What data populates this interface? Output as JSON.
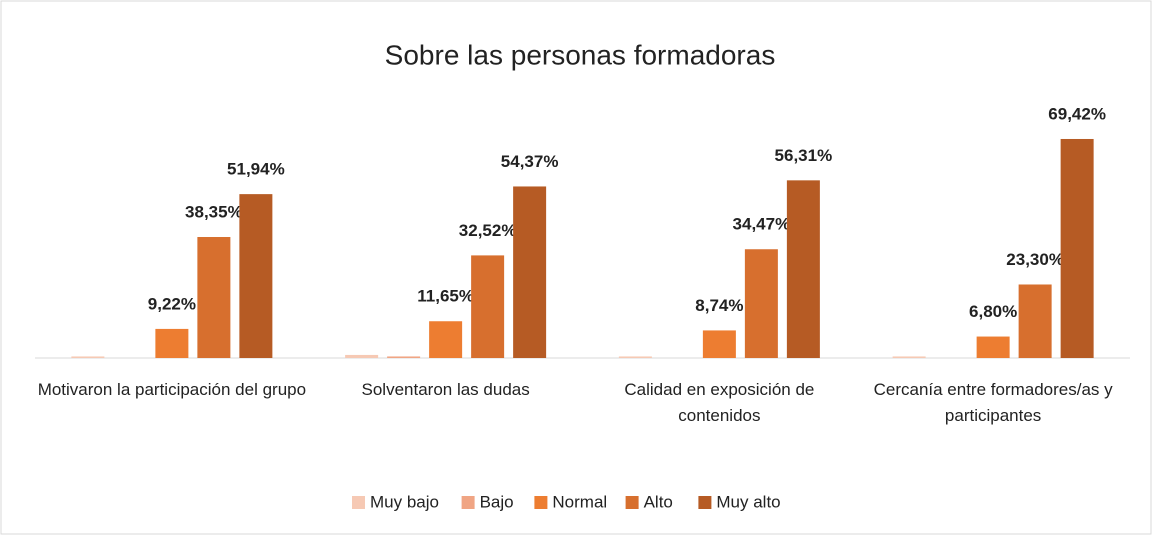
{
  "chart_data": {
    "type": "bar",
    "title": "Sobre las personas formadoras",
    "categories": [
      "Motivaron la participación del grupo",
      "Solventaron las dudas",
      "Calidad en exposición de contenidos",
      "Cercanía entre formadores/as y participantes"
    ],
    "series": [
      {
        "name": "Muy bajo",
        "color": "#f6c9b4",
        "values": [
          0.49,
          0.97,
          0.49,
          0.49
        ],
        "value_labels": [
          null,
          null,
          null,
          null
        ]
      },
      {
        "name": "Bajo",
        "color": "#f0a584",
        "values": [
          0,
          0.49,
          0,
          0
        ],
        "value_labels": [
          null,
          null,
          null,
          null
        ]
      },
      {
        "name": "Normal",
        "color": "#ed7d31",
        "values": [
          9.22,
          11.65,
          8.74,
          6.8
        ],
        "value_labels": [
          "9,22%",
          "11,65%",
          "8,74%",
          "6,80%"
        ]
      },
      {
        "name": "Alto",
        "color": "#d76f2e",
        "values": [
          38.35,
          32.52,
          34.47,
          23.3
        ],
        "value_labels": [
          "38,35%",
          "32,52%",
          "34,47%",
          "23,30%"
        ]
      },
      {
        "name": "Muy alto",
        "color": "#b65b24",
        "values": [
          51.94,
          54.37,
          56.31,
          69.42
        ],
        "value_labels": [
          "51,94%",
          "54,37%",
          "56,31%",
          "69,42%"
        ]
      }
    ]
  }
}
